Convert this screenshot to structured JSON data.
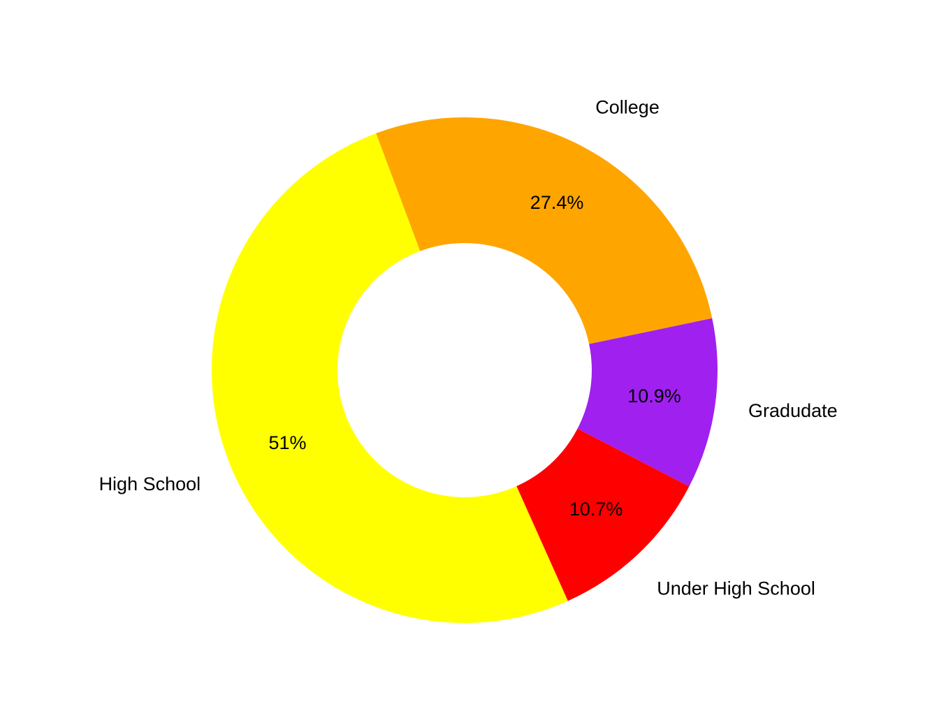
{
  "chart_data": {
    "type": "pie",
    "donut": true,
    "title": "",
    "legend": "none",
    "start_angle_deg": 0,
    "direction": "clockwise",
    "slices": [
      {
        "label": "College",
        "value": 27.4,
        "percent_label": "27.4%",
        "color": "#FFA500"
      },
      {
        "label": "Gradudate",
        "value": 10.9,
        "percent_label": "10.9%",
        "color": "#A020F0"
      },
      {
        "label": "Under High School",
        "value": 10.7,
        "percent_label": "10.7%",
        "color": "#FF0000"
      },
      {
        "label": "High School",
        "value": 51.0,
        "percent_label": "51%",
        "color": "#FFFF00"
      }
    ]
  }
}
